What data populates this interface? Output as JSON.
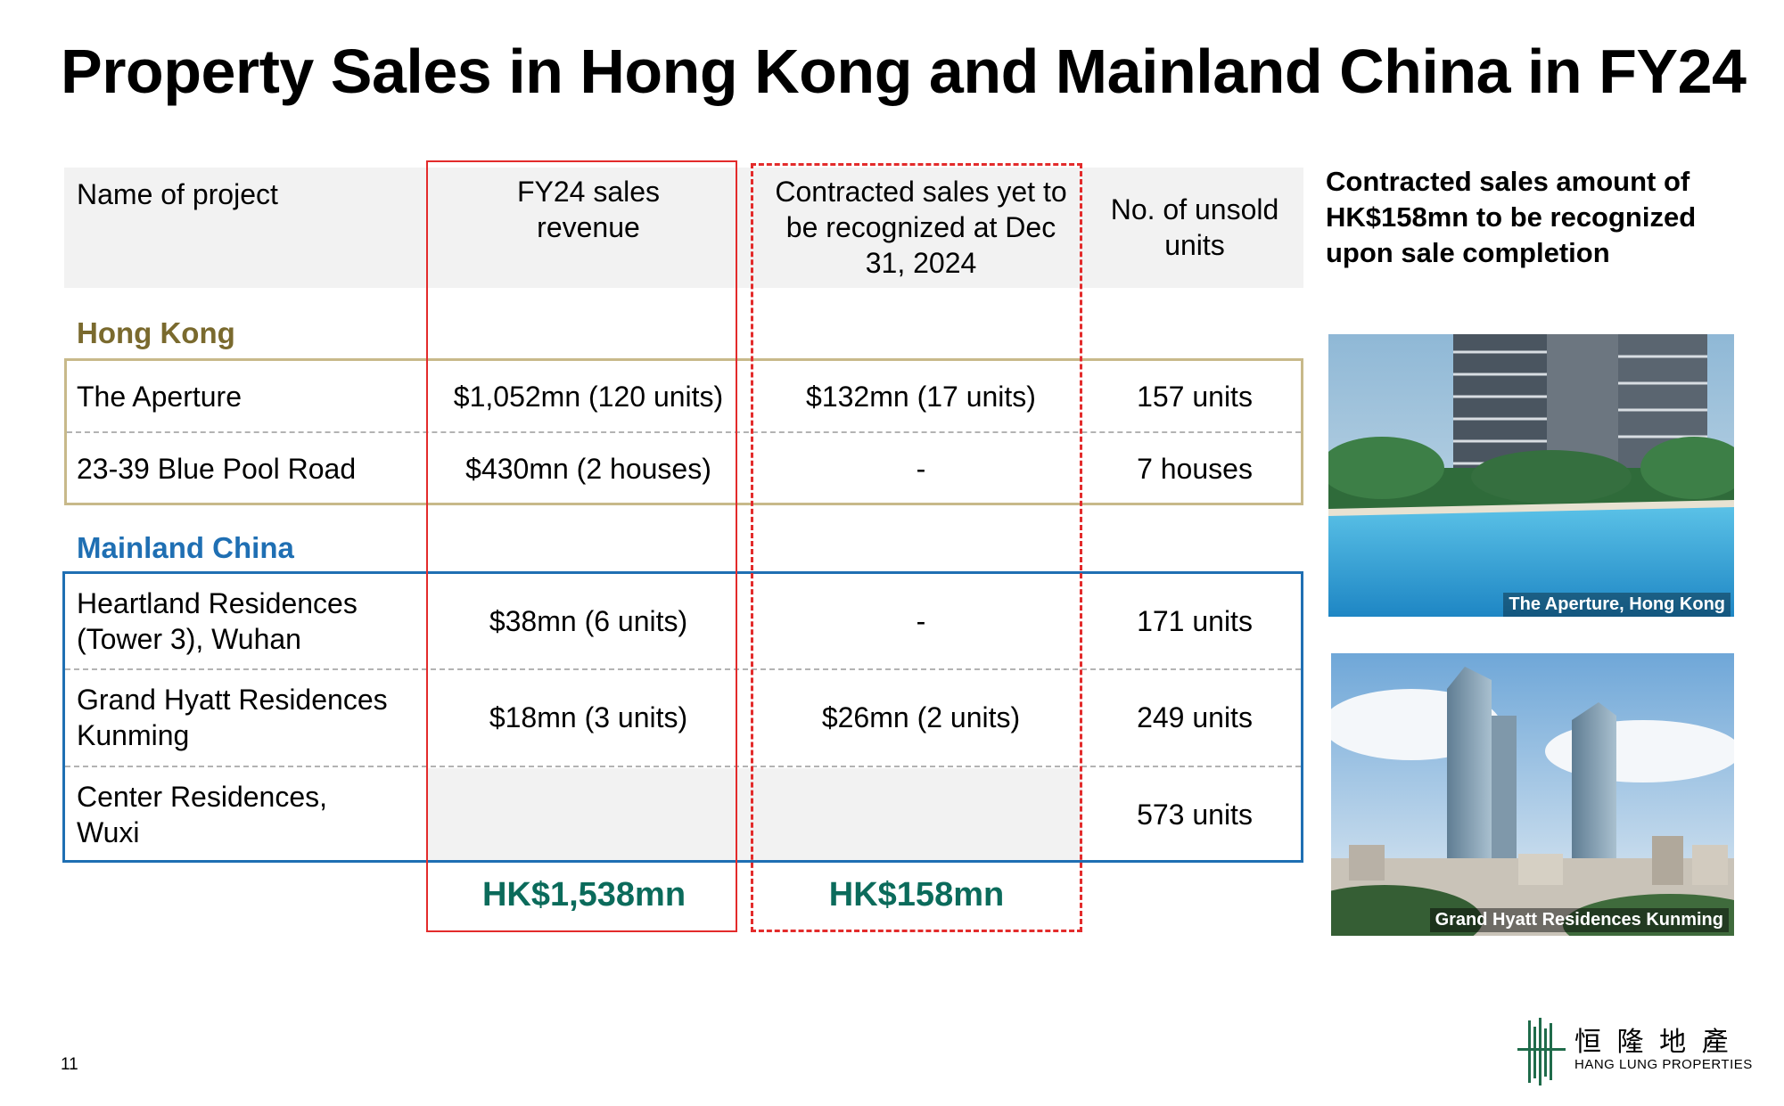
{
  "title": "Property Sales in Hong Kong and Mainland China in FY24",
  "table": {
    "headers": {
      "project": "Name of project",
      "revenue": "FY24 sales revenue",
      "contracted": "Contracted sales yet to be recognized at Dec 31, 2024",
      "unsold": "No. of unsold units"
    },
    "hong_kong": {
      "label": "Hong Kong",
      "rows": [
        {
          "name": "The Aperture",
          "revenue": "$1,052mn (120 units)",
          "contracted": "$132mn (17 units)",
          "unsold": "157 units"
        },
        {
          "name": "23-39 Blue Pool Road",
          "revenue": "$430mn (2 houses)",
          "contracted": "-",
          "unsold": "7 houses"
        }
      ]
    },
    "mainland": {
      "label": "Mainland China",
      "rows": [
        {
          "name": "Heartland Residences (Tower 3), Wuhan",
          "revenue": "$38mn (6 units)",
          "contracted": "-",
          "unsold": "171 units"
        },
        {
          "name": "Grand Hyatt Residences Kunming",
          "revenue": "$18mn (3 units)",
          "contracted": "$26mn (2 units)",
          "unsold": "249 units"
        },
        {
          "name": "Center Residences, Wuxi",
          "revenue": "",
          "contracted": "",
          "unsold": "573 units"
        }
      ]
    },
    "totals": {
      "revenue": "HK$1,538mn",
      "contracted": "HK$158mn"
    }
  },
  "side_note": "Contracted sales amount of HK$158mn to be recognized upon sale completion",
  "images": [
    {
      "caption": "The Aperture, Hong Kong"
    },
    {
      "caption": "Grand Hyatt Residences Kunming"
    }
  ],
  "page_number": "11",
  "logo": {
    "chinese": "恒 隆 地 產",
    "english": "HANG LUNG PROPERTIES"
  },
  "colors": {
    "hong_kong": "#7a6a2e",
    "hong_kong_border": "#c8b98a",
    "mainland": "#1f6fb3",
    "highlight_red": "#e32b2b",
    "total_green": "#0b6b5b"
  }
}
